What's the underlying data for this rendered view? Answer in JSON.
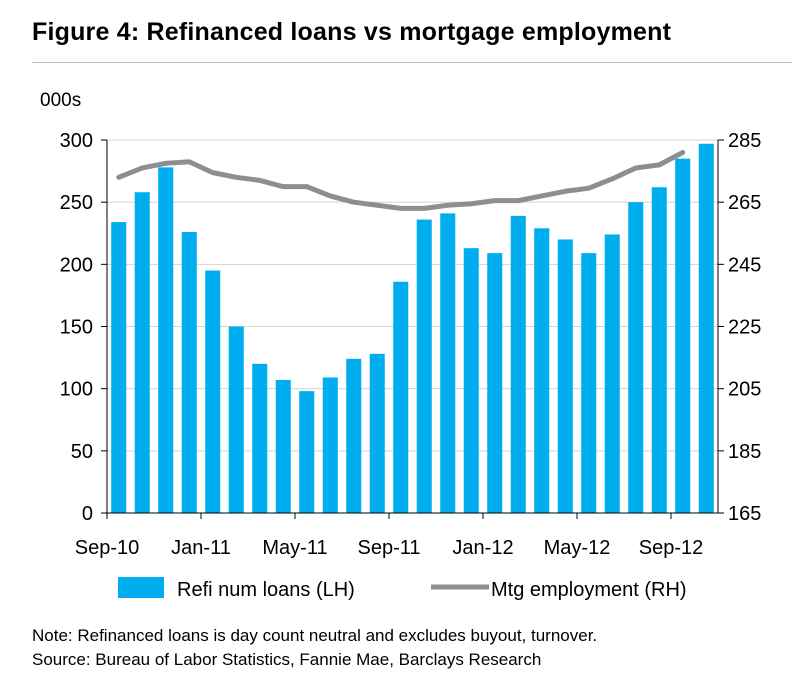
{
  "title": "Figure 4: Refinanced loans vs mortgage employment",
  "chart_data": {
    "type": "bar+line",
    "left_axis_unit": "000s",
    "left_axis": {
      "ylim": [
        0,
        300
      ],
      "ticks": [
        0,
        50,
        100,
        150,
        200,
        250,
        300
      ]
    },
    "right_axis": {
      "ylim": [
        165,
        285
      ],
      "ticks": [
        165,
        185,
        205,
        225,
        245,
        265,
        285
      ]
    },
    "x_tick_labels": [
      "Sep-10",
      "Jan-11",
      "May-11",
      "Sep-11",
      "Jan-12",
      "May-12",
      "Sep-12"
    ],
    "x_tick_month_index": [
      0,
      4,
      8,
      12,
      16,
      20,
      24
    ],
    "months": [
      "Sep-10",
      "Oct-10",
      "Nov-10",
      "Dec-10",
      "Jan-11",
      "Feb-11",
      "Mar-11",
      "Apr-11",
      "May-11",
      "Jun-11",
      "Jul-11",
      "Aug-11",
      "Sep-11",
      "Oct-11",
      "Nov-11",
      "Dec-11",
      "Jan-12",
      "Feb-12",
      "Mar-12",
      "Apr-12",
      "May-12",
      "Jun-12",
      "Jul-12",
      "Aug-12",
      "Sep-12",
      "Oct-12"
    ],
    "series": [
      {
        "name": "Refi num loans (LH)",
        "type": "bar",
        "axis": "left",
        "color": "#00AEEF",
        "values": [
          234,
          258,
          278,
          226,
          195,
          150,
          120,
          107,
          98,
          109,
          124,
          128,
          186,
          236,
          241,
          213,
          209,
          239,
          229,
          220,
          209,
          224,
          250,
          262,
          285,
          297
        ]
      },
      {
        "name": "Mtg employment (RH)",
        "type": "line",
        "axis": "right",
        "color": "#8C8F91",
        "values": [
          273,
          276,
          277.5,
          278,
          274.5,
          273,
          272,
          270,
          270,
          267,
          265,
          264,
          263,
          263,
          264,
          264.5,
          265.5,
          265.5,
          267,
          268.5,
          269.5,
          272.5,
          276,
          277,
          281,
          null
        ]
      }
    ],
    "legend": {
      "position": "bottom"
    }
  },
  "notes": {
    "note": "Note: Refinanced loans is day count neutral and excludes buyout, turnover.",
    "source": "Source: Bureau of Labor Statistics, Fannie Mae, Barclays Research"
  }
}
